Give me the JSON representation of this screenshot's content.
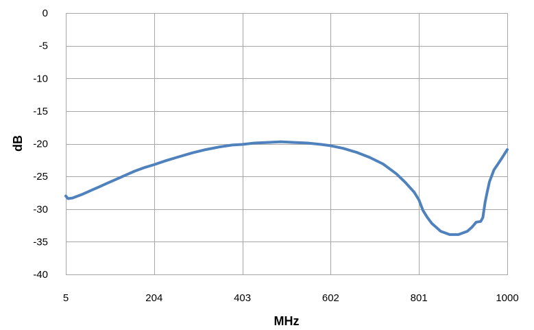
{
  "chart_data": {
    "type": "line",
    "title": "",
    "xlabel": "MHz",
    "ylabel": "dB",
    "xlim": [
      5,
      1000
    ],
    "ylim": [
      -40,
      0
    ],
    "x_ticks": [
      5,
      204,
      403,
      602,
      801,
      1000
    ],
    "y_ticks": [
      0,
      -5,
      -10,
      -15,
      -20,
      -25,
      -30,
      -35,
      -40
    ],
    "grid": true,
    "legend": "none",
    "series": [
      {
        "color": "#4f81bd",
        "x": [
          5,
          10,
          20,
          40,
          60,
          80,
          100,
          120,
          140,
          160,
          180,
          204,
          230,
          260,
          290,
          320,
          350,
          380,
          403,
          430,
          460,
          490,
          520,
          550,
          580,
          602,
          630,
          660,
          690,
          720,
          750,
          770,
          790,
          801,
          810,
          820,
          830,
          850,
          870,
          890,
          910,
          920,
          930,
          940,
          945,
          950,
          955,
          960,
          970,
          985,
          1000
        ],
        "y": [
          -28.0,
          -28.4,
          -28.3,
          -27.8,
          -27.2,
          -26.6,
          -26.0,
          -25.4,
          -24.8,
          -24.2,
          -23.7,
          -23.2,
          -22.6,
          -22.0,
          -21.4,
          -20.9,
          -20.5,
          -20.2,
          -20.1,
          -19.9,
          -19.8,
          -19.7,
          -19.8,
          -19.9,
          -20.1,
          -20.3,
          -20.7,
          -21.3,
          -22.1,
          -23.1,
          -24.6,
          -25.9,
          -27.4,
          -28.6,
          -30.2,
          -31.3,
          -32.2,
          -33.4,
          -33.9,
          -33.9,
          -33.4,
          -32.8,
          -32.0,
          -31.9,
          -31.3,
          -29.0,
          -27.3,
          -25.8,
          -24.0,
          -22.5,
          -20.9
        ]
      }
    ]
  }
}
